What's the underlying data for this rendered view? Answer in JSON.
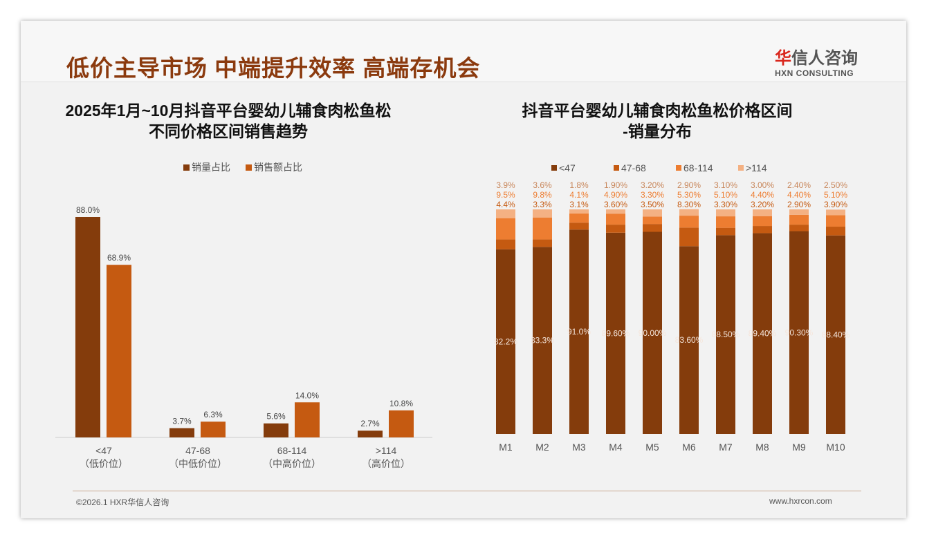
{
  "header": {
    "title": "低价主导市场 中端提升效率 高端存机会",
    "logo_cn_red": "华",
    "logo_cn": "信人咨询",
    "logo_en": "HXN CONSULTING"
  },
  "footer": {
    "left": "©2026.1 HXR华信人咨询",
    "right": "www.hxrcon.com"
  },
  "colors": {
    "dark": "#843c0c",
    "orange": "#c55a11",
    "mid": "#ed7d31",
    "light": "#f4b183"
  },
  "chart_data": [
    {
      "type": "bar",
      "title": "2025年1月~10月抖音平台婴幼儿辅食肉松鱼松\n不同价格区间销售趋势",
      "title_lines": [
        "2025年1月~10月抖音平台婴幼儿辅食肉松鱼松",
        "不同价格区间销售趋势"
      ],
      "categories": [
        "<47",
        "47-68",
        "68-114",
        ">114"
      ],
      "sublabels": [
        "（低价位）",
        "（中低价位）",
        "（中高价位）",
        "（高价位）"
      ],
      "series": [
        {
          "name": "销量占比",
          "values": [
            88.0,
            3.7,
            5.6,
            2.7
          ],
          "labels": [
            "88.0%",
            "3.7%",
            "5.6%",
            "2.7%"
          ]
        },
        {
          "name": "销售额占比",
          "values": [
            68.9,
            6.3,
            14.0,
            10.8
          ],
          "labels": [
            "68.9%",
            "6.3%",
            "14.0%",
            "10.8%"
          ]
        }
      ],
      "legend": "top",
      "ylim": [
        0,
        100
      ]
    },
    {
      "type": "bar",
      "stacked": true,
      "title_lines": [
        "抖音平台婴幼儿辅食肉松鱼松价格区间",
        "-销量分布"
      ],
      "categories": [
        "M1",
        "M2",
        "M3",
        "M4",
        "M5",
        "M6",
        "M7",
        "M8",
        "M9",
        "M10"
      ],
      "series": [
        {
          "name": "<47",
          "values": [
            82.2,
            83.3,
            91.0,
            89.6,
            90.0,
            83.6,
            88.5,
            89.4,
            90.3,
            88.4
          ],
          "labels": [
            "82.2%",
            "83.3%",
            "91.0%",
            "89.60%",
            "90.00%",
            "83.60%",
            "88.50%",
            "89.40%",
            "90.30%",
            "88.40%"
          ]
        },
        {
          "name": "47-68",
          "values": [
            4.4,
            3.3,
            3.1,
            3.6,
            3.5,
            8.3,
            3.3,
            3.2,
            2.9,
            3.9
          ],
          "labels": [
            "4.4%",
            "3.3%",
            "3.1%",
            "3.60%",
            "3.50%",
            "8.30%",
            "3.30%",
            "3.20%",
            "2.90%",
            "3.90%"
          ]
        },
        {
          "name": "68-114",
          "values": [
            9.5,
            9.8,
            4.1,
            4.9,
            3.3,
            5.3,
            5.1,
            4.4,
            4.4,
            5.1
          ],
          "labels": [
            "9.5%",
            "9.8%",
            "4.1%",
            "4.90%",
            "3.30%",
            "5.30%",
            "5.10%",
            "4.40%",
            "4.40%",
            "5.10%"
          ]
        },
        {
          "name": ">114",
          "values": [
            3.9,
            3.6,
            1.8,
            1.9,
            3.2,
            2.9,
            3.1,
            3.0,
            2.4,
            2.5
          ],
          "labels": [
            "3.9%",
            "3.6%",
            "1.8%",
            "1.90%",
            "3.20%",
            "2.90%",
            "3.10%",
            "3.00%",
            "2.40%",
            "2.50%"
          ]
        }
      ],
      "legend": "top",
      "ylim": [
        0,
        100
      ]
    }
  ]
}
